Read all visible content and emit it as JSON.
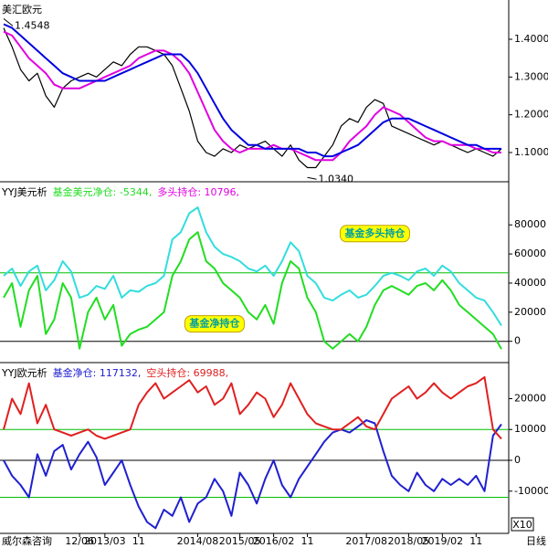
{
  "chart_data": [
    {
      "type": "line",
      "title": "美汇欧元",
      "xlim": [
        0,
        59
      ],
      "ylim": [
        1.025,
        1.504
      ],
      "yticks": [
        {
          "value": 1.4,
          "label": "1.4000"
        },
        {
          "value": 1.3,
          "label": "1.3000"
        },
        {
          "value": 1.2,
          "label": "1.2000"
        },
        {
          "value": 1.1,
          "label": "1.1000"
        }
      ],
      "annotations": [
        {
          "text": "1.4548",
          "x": 0,
          "y": 1.4548
        },
        {
          "text": "1.0340",
          "x": 36,
          "y": 1.034
        }
      ],
      "series": [
        {
          "color": "#000000",
          "values": [
            1.43,
            1.38,
            1.32,
            1.29,
            1.31,
            1.25,
            1.22,
            1.27,
            1.29,
            1.3,
            1.31,
            1.3,
            1.32,
            1.34,
            1.33,
            1.36,
            1.38,
            1.38,
            1.37,
            1.36,
            1.33,
            1.27,
            1.21,
            1.13,
            1.1,
            1.09,
            1.11,
            1.1,
            1.12,
            1.11,
            1.12,
            1.13,
            1.11,
            1.09,
            1.12,
            1.08,
            1.06,
            1.06,
            1.09,
            1.12,
            1.17,
            1.19,
            1.18,
            1.22,
            1.24,
            1.23,
            1.17,
            1.16,
            1.15,
            1.14,
            1.13,
            1.12,
            1.13,
            1.12,
            1.11,
            1.1,
            1.11,
            1.1,
            1.09,
            1.11
          ]
        },
        {
          "color": "#e000e0",
          "values": [
            1.42,
            1.41,
            1.38,
            1.35,
            1.33,
            1.31,
            1.28,
            1.27,
            1.27,
            1.27,
            1.28,
            1.29,
            1.3,
            1.31,
            1.32,
            1.33,
            1.35,
            1.36,
            1.37,
            1.37,
            1.36,
            1.34,
            1.31,
            1.26,
            1.21,
            1.16,
            1.13,
            1.11,
            1.1,
            1.11,
            1.11,
            1.11,
            1.12,
            1.11,
            1.11,
            1.1,
            1.09,
            1.08,
            1.08,
            1.08,
            1.1,
            1.13,
            1.15,
            1.17,
            1.2,
            1.22,
            1.21,
            1.2,
            1.18,
            1.16,
            1.14,
            1.13,
            1.13,
            1.12,
            1.12,
            1.12,
            1.11,
            1.11,
            1.1,
            1.1
          ]
        },
        {
          "color": "#0000e0",
          "values": [
            1.44,
            1.43,
            1.41,
            1.39,
            1.37,
            1.35,
            1.33,
            1.31,
            1.3,
            1.29,
            1.29,
            1.29,
            1.29,
            1.3,
            1.31,
            1.32,
            1.33,
            1.34,
            1.35,
            1.36,
            1.36,
            1.36,
            1.34,
            1.31,
            1.27,
            1.23,
            1.19,
            1.16,
            1.14,
            1.12,
            1.12,
            1.11,
            1.11,
            1.11,
            1.11,
            1.11,
            1.1,
            1.1,
            1.09,
            1.09,
            1.1,
            1.11,
            1.12,
            1.14,
            1.16,
            1.18,
            1.19,
            1.19,
            1.19,
            1.18,
            1.17,
            1.16,
            1.15,
            1.14,
            1.13,
            1.12,
            1.12,
            1.11,
            1.11,
            1.11
          ]
        }
      ]
    },
    {
      "type": "line",
      "title": "YYJ美元析",
      "xlim": [
        0,
        59
      ],
      "ylim": [
        -14000,
        109000
      ],
      "yticks": [
        80000,
        60000,
        40000,
        20000,
        0
      ],
      "reference_lines": [
        {
          "value": 47000,
          "color": "#00c000"
        },
        {
          "value": 0,
          "color": "#000000"
        }
      ],
      "annotations": [
        {
          "text": "基金多头持仓",
          "x": 44,
          "y": 74000
        },
        {
          "text": "基金净持仓",
          "x": 25,
          "y": 12000
        }
      ],
      "series": [
        {
          "name": "基金美元净仓: -5344,",
          "color": "#22dd22",
          "values": [
            30000,
            40000,
            10000,
            35000,
            45000,
            5000,
            15000,
            40000,
            30000,
            -5000,
            20000,
            30000,
            15000,
            25000,
            -3000,
            5000,
            8000,
            10000,
            15000,
            20000,
            45000,
            55000,
            70000,
            75000,
            55000,
            50000,
            40000,
            35000,
            30000,
            20000,
            15000,
            25000,
            12000,
            40000,
            55000,
            50000,
            30000,
            20000,
            0,
            -5000,
            0,
            5000,
            0,
            10000,
            25000,
            35000,
            38000,
            35000,
            32000,
            38000,
            40000,
            35000,
            42000,
            35000,
            25000,
            20000,
            15000,
            10000,
            5000,
            -5344
          ]
        },
        {
          "name": "多头持仓: 10796,",
          "color": "#33dddd",
          "label_color": "#e000e0",
          "values": [
            45000,
            50000,
            38000,
            48000,
            52000,
            35000,
            42000,
            55000,
            48000,
            30000,
            32000,
            38000,
            36000,
            45000,
            30000,
            35000,
            34000,
            38000,
            40000,
            45000,
            70000,
            75000,
            88000,
            92000,
            75000,
            65000,
            60000,
            58000,
            55000,
            50000,
            48000,
            52000,
            45000,
            55000,
            68000,
            62000,
            45000,
            40000,
            30000,
            28000,
            32000,
            35000,
            30000,
            32000,
            38000,
            45000,
            47000,
            45000,
            42000,
            48000,
            50000,
            45000,
            52000,
            48000,
            40000,
            35000,
            30000,
            28000,
            20000,
            10796
          ]
        }
      ]
    },
    {
      "type": "line",
      "title": "YYJ欧元析",
      "xlim": [
        0,
        59
      ],
      "ylim": [
        -23400,
        31400
      ],
      "yticks": [
        20000,
        10000,
        0,
        -10000
      ],
      "scale_label": "X10",
      "source": "威尔森咨询",
      "period": "日线",
      "xticks": [
        {
          "value": 9,
          "label": "12/06"
        },
        {
          "value": 12,
          "label": "2013/03"
        },
        {
          "value": 16,
          "label": "11"
        },
        {
          "value": 23,
          "label": "2014/08"
        },
        {
          "value": 28,
          "label": "2015/05"
        },
        {
          "value": 32,
          "label": "2016/02"
        },
        {
          "value": 36,
          "label": "11"
        },
        {
          "value": 43,
          "label": "2017/08"
        },
        {
          "value": 48,
          "label": "2018/05"
        },
        {
          "value": 52,
          "label": "2019/02"
        },
        {
          "value": 56,
          "label": "11"
        }
      ],
      "reference_lines": [
        {
          "value": 10000,
          "color": "#00c000"
        },
        {
          "value": 0,
          "color": "#000000"
        },
        {
          "value": -12000,
          "color": "#00c000"
        }
      ],
      "series": [
        {
          "name": "基金净仓: 117132,",
          "color": "#2020d0",
          "values": [
            0,
            -5000,
            -8000,
            -12000,
            2000,
            -5000,
            3000,
            5000,
            -3000,
            2000,
            6000,
            1000,
            -8000,
            -4000,
            0,
            -8000,
            -15000,
            -20000,
            -22000,
            -16000,
            -18000,
            -12000,
            -20000,
            -14000,
            -12000,
            -6000,
            -10000,
            -18000,
            -4000,
            -8000,
            -14000,
            -6000,
            0,
            -8000,
            -12000,
            -6000,
            -2000,
            2000,
            6000,
            9000,
            10000,
            9000,
            11000,
            13000,
            12000,
            3000,
            -5000,
            -8000,
            -10000,
            -4000,
            -8000,
            -10000,
            -6000,
            -8000,
            -6000,
            -8000,
            -5000,
            -10000,
            8000,
            11713
          ]
        },
        {
          "name": "空头持仓: 69988,",
          "color": "#e02020",
          "values": [
            10000,
            20000,
            15000,
            25000,
            12000,
            18000,
            10000,
            9000,
            8000,
            9000,
            10000,
            8000,
            7000,
            8000,
            9000,
            10000,
            18000,
            22000,
            25000,
            20000,
            22000,
            24000,
            26000,
            22000,
            24000,
            18000,
            20000,
            25000,
            15000,
            18000,
            22000,
            20000,
            14000,
            18000,
            25000,
            20000,
            15000,
            12000,
            11000,
            10000,
            10000,
            12000,
            14000,
            11000,
            10000,
            15000,
            20000,
            22000,
            24000,
            20000,
            22000,
            25000,
            22000,
            20000,
            22000,
            24000,
            25000,
            27000,
            10000,
            6999
          ]
        }
      ]
    }
  ]
}
